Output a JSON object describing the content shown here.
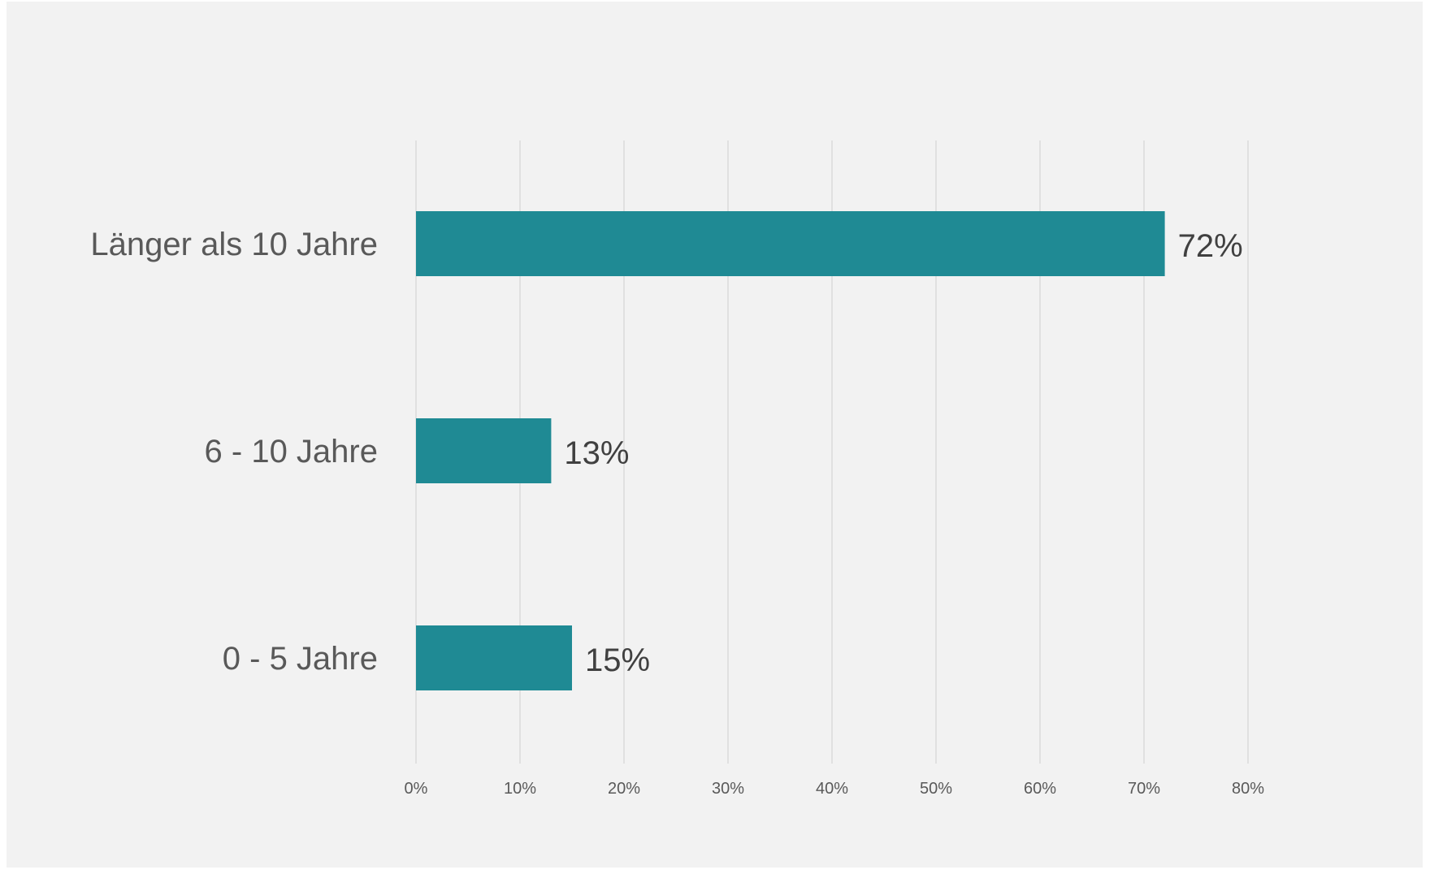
{
  "chart_data": {
    "type": "bar",
    "orientation": "horizontal",
    "title": "",
    "xlabel": "",
    "ylabel": "",
    "categories": [
      "Länger als 10 Jahre",
      "6 - 10 Jahre",
      "0 - 5 Jahre"
    ],
    "values": [
      72,
      13,
      15
    ],
    "data_labels": [
      "72%",
      "13%",
      "15%"
    ],
    "xlim": [
      0,
      80
    ],
    "x_ticks": [
      0,
      10,
      20,
      30,
      40,
      50,
      60,
      70,
      80
    ],
    "x_tick_labels": [
      "0%",
      "10%",
      "20%",
      "30%",
      "40%",
      "50%",
      "60%",
      "70%",
      "80%"
    ],
    "grid": "vertical",
    "legend": "none",
    "bar_color": "#1f8a94",
    "background_color": "#f2f2f2"
  }
}
